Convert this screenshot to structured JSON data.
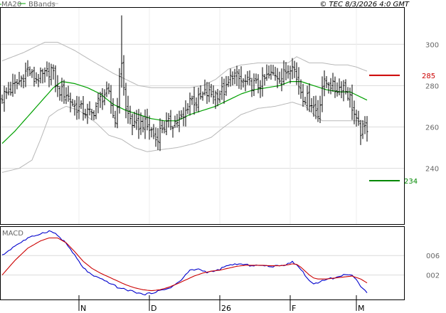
{
  "header": {
    "legend_ma": "MA20",
    "legend_bb": "BBands",
    "timestamp": "© TEC 8/3/2026 4:0 GMT"
  },
  "colors": {
    "price": "#000000",
    "ma20": "#00a000",
    "bbands": "#b8b8b8",
    "macd": "#0000cc",
    "signal": "#cc0000",
    "resistance": "#cc0000",
    "support": "#008800",
    "grid": "#dcdcdc"
  },
  "chart_data": [
    {
      "type": "ohlc",
      "panel": "price",
      "y_ticks": [
        240,
        260,
        280,
        300
      ],
      "y_tick_labels": [
        "240",
        "260",
        "280",
        "300"
      ],
      "ylim": [
        213,
        318
      ],
      "grid": true,
      "x_ticks": [
        {
          "label": "N",
          "index": 36
        },
        {
          "label": "D",
          "index": 69
        },
        {
          "label": "26",
          "index": 102
        },
        {
          "label": "F",
          "index": 135
        },
        {
          "label": "M",
          "index": 166
        }
      ],
      "n_bars": 172,
      "anchors_close": [
        [
          0,
          275
        ],
        [
          4,
          278
        ],
        [
          8,
          282
        ],
        [
          12,
          288
        ],
        [
          15,
          283
        ],
        [
          20,
          285
        ],
        [
          23,
          288
        ],
        [
          26,
          278
        ],
        [
          30,
          276
        ],
        [
          34,
          270
        ],
        [
          38,
          268
        ],
        [
          42,
          266
        ],
        [
          45,
          272
        ],
        [
          48,
          276
        ],
        [
          50,
          275
        ],
        [
          53,
          262
        ],
        [
          56,
          292
        ],
        [
          58,
          268
        ],
        [
          62,
          260
        ],
        [
          66,
          262
        ],
        [
          70,
          258
        ],
        [
          72,
          254
        ],
        [
          75,
          260
        ],
        [
          80,
          262
        ],
        [
          85,
          264
        ],
        [
          88,
          274
        ],
        [
          91,
          272
        ],
        [
          95,
          276
        ],
        [
          100,
          276
        ],
        [
          105,
          278
        ],
        [
          108,
          286
        ],
        [
          112,
          282
        ],
        [
          116,
          281
        ],
        [
          120,
          280
        ],
        [
          124,
          284
        ],
        [
          128,
          286
        ],
        [
          131,
          284
        ],
        [
          134,
          288
        ],
        [
          136,
          292
        ],
        [
          138,
          283
        ],
        [
          141,
          275
        ],
        [
          145,
          272
        ],
        [
          148,
          266
        ],
        [
          150,
          280
        ],
        [
          153,
          282
        ],
        [
          156,
          278
        ],
        [
          160,
          280
        ],
        [
          163,
          274
        ],
        [
          166,
          262
        ],
        [
          168,
          258
        ],
        [
          171,
          260
        ]
      ],
      "bar_range": 7,
      "ma20_anchors": [
        [
          0,
          252
        ],
        [
          6,
          258
        ],
        [
          12,
          265
        ],
        [
          18,
          272
        ],
        [
          24,
          279
        ],
        [
          28,
          282
        ],
        [
          34,
          281
        ],
        [
          40,
          279
        ],
        [
          46,
          276
        ],
        [
          52,
          271
        ],
        [
          58,
          268
        ],
        [
          64,
          266
        ],
        [
          70,
          264
        ],
        [
          76,
          263
        ],
        [
          82,
          263
        ],
        [
          88,
          266
        ],
        [
          94,
          268
        ],
        [
          100,
          270
        ],
        [
          106,
          273
        ],
        [
          112,
          276
        ],
        [
          118,
          278
        ],
        [
          124,
          279
        ],
        [
          130,
          280
        ],
        [
          135,
          282
        ],
        [
          140,
          282
        ],
        [
          146,
          280
        ],
        [
          152,
          278
        ],
        [
          158,
          277
        ],
        [
          163,
          277
        ],
        [
          167,
          275
        ],
        [
          171,
          273
        ]
      ],
      "bb_upper_anchors": [
        [
          0,
          292
        ],
        [
          10,
          296
        ],
        [
          20,
          301
        ],
        [
          26,
          301
        ],
        [
          34,
          297
        ],
        [
          42,
          292
        ],
        [
          52,
          286
        ],
        [
          58,
          283
        ],
        [
          64,
          280
        ],
        [
          70,
          279
        ],
        [
          76,
          279
        ],
        [
          82,
          279
        ],
        [
          88,
          279
        ],
        [
          94,
          280
        ],
        [
          100,
          283
        ],
        [
          106,
          288
        ],
        [
          112,
          290
        ],
        [
          120,
          291
        ],
        [
          128,
          291
        ],
        [
          134,
          291
        ],
        [
          138,
          294
        ],
        [
          144,
          291
        ],
        [
          150,
          291
        ],
        [
          156,
          290
        ],
        [
          162,
          290
        ],
        [
          166,
          289
        ],
        [
          171,
          287
        ]
      ],
      "bb_lower_anchors": [
        [
          0,
          238
        ],
        [
          8,
          240
        ],
        [
          14,
          244
        ],
        [
          18,
          254
        ],
        [
          22,
          265
        ],
        [
          26,
          268
        ],
        [
          30,
          270
        ],
        [
          36,
          268
        ],
        [
          44,
          262
        ],
        [
          50,
          256
        ],
        [
          56,
          254
        ],
        [
          62,
          250
        ],
        [
          68,
          248
        ],
        [
          74,
          249
        ],
        [
          82,
          250
        ],
        [
          90,
          252
        ],
        [
          98,
          255
        ],
        [
          104,
          260
        ],
        [
          112,
          266
        ],
        [
          120,
          269
        ],
        [
          128,
          270
        ],
        [
          136,
          272
        ],
        [
          142,
          270
        ],
        [
          146,
          266
        ],
        [
          150,
          263
        ],
        [
          156,
          263
        ],
        [
          162,
          263
        ],
        [
          168,
          263
        ],
        [
          171,
          262
        ]
      ],
      "resistance": {
        "value": 285,
        "label": "285",
        "start_index": 172
      },
      "support": {
        "value": 234,
        "label": "234",
        "start_index": 172
      },
      "spikes": [
        {
          "index": 56,
          "high": 314,
          "low": 279
        }
      ]
    },
    {
      "type": "line",
      "panel": "macd",
      "title": "MACD",
      "y_ticks": [
        2,
        6
      ],
      "y_tick_labels": [
        "002",
        "006"
      ],
      "ylim": [
        -3,
        12
      ],
      "grid": true,
      "series": [
        {
          "role": "macd",
          "anchors": [
            [
              0,
              6.0
            ],
            [
              6,
              8.0
            ],
            [
              12,
              9.5
            ],
            [
              18,
              10.5
            ],
            [
              22,
              11.0
            ],
            [
              25,
              10.5
            ],
            [
              30,
              8.5
            ],
            [
              34,
              6.0
            ],
            [
              38,
              3.5
            ],
            [
              42,
              2.0
            ],
            [
              46,
              1.2
            ],
            [
              50,
              0.5
            ],
            [
              54,
              -0.5
            ],
            [
              58,
              -1.0
            ],
            [
              62,
              -1.4
            ],
            [
              66,
              -2.0
            ],
            [
              69,
              -1.8
            ],
            [
              72,
              -1.4
            ],
            [
              76,
              -1.0
            ],
            [
              80,
              -0.3
            ],
            [
              84,
              1.0
            ],
            [
              88,
              3.0
            ],
            [
              92,
              3.2
            ],
            [
              96,
              2.6
            ],
            [
              100,
              2.8
            ],
            [
              104,
              3.6
            ],
            [
              108,
              4.2
            ],
            [
              112,
              4.2
            ],
            [
              116,
              4.0
            ],
            [
              120,
              4.0
            ],
            [
              124,
              3.8
            ],
            [
              128,
              3.8
            ],
            [
              132,
              4.0
            ],
            [
              136,
              4.8
            ],
            [
              138,
              4.0
            ],
            [
              140,
              3.2
            ],
            [
              142,
              2.0
            ],
            [
              144,
              0.8
            ],
            [
              146,
              0.2
            ],
            [
              148,
              0.5
            ],
            [
              152,
              1.2
            ],
            [
              156,
              1.4
            ],
            [
              160,
              2.0
            ],
            [
              162,
              2.2
            ],
            [
              164,
              2.0
            ],
            [
              166,
              1.0
            ],
            [
              168,
              -0.5
            ],
            [
              171,
              -1.5
            ]
          ]
        },
        {
          "role": "signal",
          "anchors": [
            [
              0,
              2.0
            ],
            [
              6,
              5.0
            ],
            [
              12,
              7.5
            ],
            [
              18,
              9.0
            ],
            [
              22,
              9.6
            ],
            [
              26,
              9.6
            ],
            [
              30,
              8.6
            ],
            [
              34,
              6.8
            ],
            [
              38,
              4.8
            ],
            [
              42,
              3.4
            ],
            [
              46,
              2.4
            ],
            [
              50,
              1.6
            ],
            [
              54,
              0.8
            ],
            [
              58,
              0.0
            ],
            [
              62,
              -0.6
            ],
            [
              66,
              -1.0
            ],
            [
              70,
              -1.2
            ],
            [
              74,
              -1.0
            ],
            [
              78,
              -0.5
            ],
            [
              82,
              0.2
            ],
            [
              86,
              1.0
            ],
            [
              90,
              1.8
            ],
            [
              94,
              2.4
            ],
            [
              98,
              2.8
            ],
            [
              102,
              3.0
            ],
            [
              106,
              3.4
            ],
            [
              110,
              3.8
            ],
            [
              114,
              4.0
            ],
            [
              118,
              4.0
            ],
            [
              122,
              4.0
            ],
            [
              126,
              3.9
            ],
            [
              130,
              3.9
            ],
            [
              134,
              4.1
            ],
            [
              136,
              4.3
            ],
            [
              138,
              4.2
            ],
            [
              140,
              3.6
            ],
            [
              142,
              2.8
            ],
            [
              144,
              2.0
            ],
            [
              146,
              1.4
            ],
            [
              148,
              1.2
            ],
            [
              152,
              1.2
            ],
            [
              156,
              1.4
            ],
            [
              160,
              1.6
            ],
            [
              164,
              1.8
            ],
            [
              168,
              1.2
            ],
            [
              171,
              0.4
            ]
          ]
        }
      ]
    }
  ]
}
